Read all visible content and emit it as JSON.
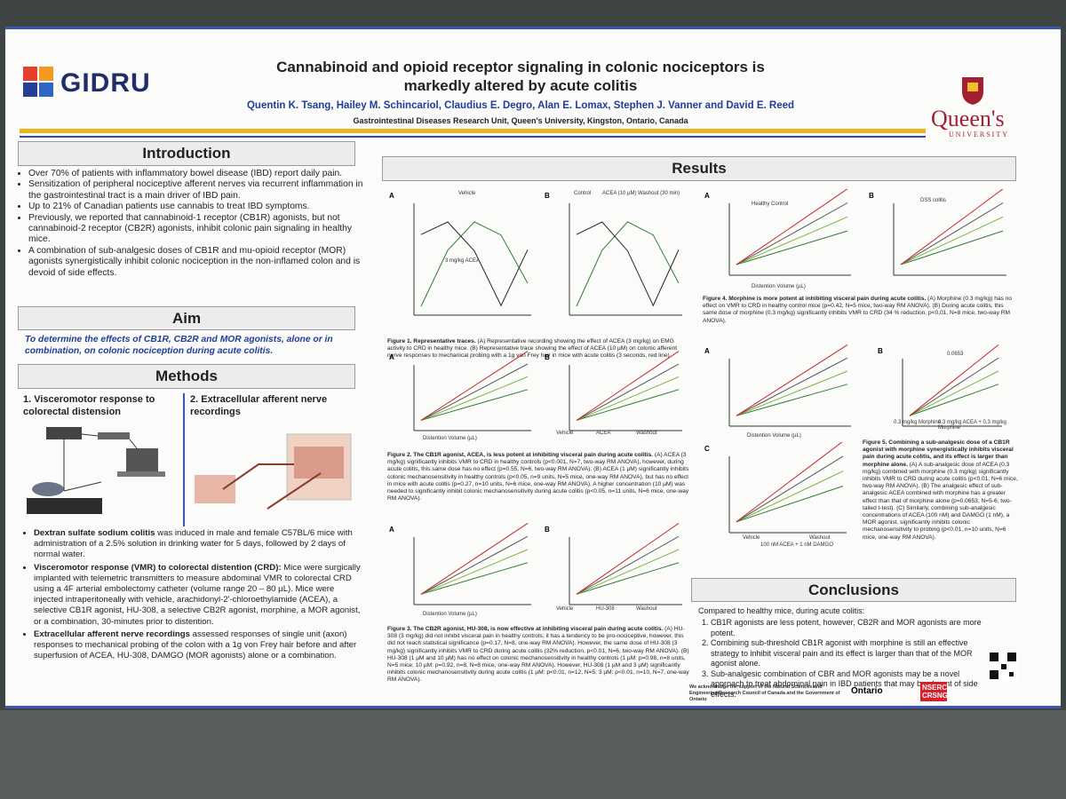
{
  "header": {
    "logo": "GIDRU",
    "title": "Cannabinoid and opioid receptor signaling in colonic nociceptors is markedly altered by acute colitis",
    "authors": "Quentin K. Tsang, Hailey M. Schincariol, Claudius E. Degro, Alan E. Lomax, Stephen J. Vanner and David E. Reed",
    "affiliation": "Gastrointestinal Diseases Research Unit, Queen's University, Kingston, Ontario, Canada",
    "university": "Queen's",
    "university_sub": "UNIVERSITY"
  },
  "introduction": {
    "heading": "Introduction",
    "bullets": [
      "Over 70% of patients with inflammatory bowel disease (IBD) report daily pain.",
      "Sensitization of peripheral nociceptive afferent nerves via recurrent inflammation in the gastrointestinal tract is a main driver of IBD pain.",
      "Up to 21% of Canadian patients use cannabis to treat IBD symptoms.",
      "Previously, we reported that cannabinoid-1 receptor (CB1R) agonists, but not cannabinoid-2 receptor (CB2R) agonists, inhibit colonic pain signaling in healthy mice.",
      "A combination of sub-analgesic doses of CB1R and mu-opioid receptor (MOR) agonists synergistically inhibit colonic nociception in the non-inflamed colon and is devoid of side effects."
    ]
  },
  "aim": {
    "heading": "Aim",
    "text": "To determine the effects of CB1R, CB2R and MOR agonists, alone or in combination, on colonic nociception during acute colitis."
  },
  "methods": {
    "heading": "Methods",
    "sub1": "1. Visceromotor response to colorectal distension",
    "sub2": "2. Extracellular afferent nerve recordings",
    "bullets": [
      {
        "lead": "Dextran sulfate sodium colitis",
        "text": " was induced in male and female C57BL/6 mice with administration of a 2.5% solution in drinking water for 5 days, followed by 2 days of normal water."
      },
      {
        "lead": "Visceromotor response (VMR) to colorectal distention (CRD):",
        "text": " Mice were surgically implanted with telemetric transmitters to measure abdominal VMR to colorectal CRD using a 4F arterial embolectomy catheter (volume range 20 – 80 µL). Mice were injected intraperitoneally with vehicle, arachidonyl-2'-chloroethylamide (ACEA), a selective CB1R agonist, HU-308, a selective CB2R agonist, morphine, a MOR agonist, or a combination, 30-minutes prior to distention."
      },
      {
        "lead": "Extracellular afferent nerve recordings",
        "text": " assessed responses of single unit (axon) responses to mechanical probing of the colon with a 1g von Frey hair before and after superfusion of ACEA, HU-308, DAMGO (MOR agonists) alone or a combination."
      }
    ]
  },
  "results": {
    "heading": "Results",
    "figures": [
      {
        "panels": [
          "A",
          "B"
        ],
        "caption_title": "Figure 1. Representative traces.",
        "caption": " (A) Representative recording showing the effect of ACEA (3 mg/kg) on EMG activity to CRD in healthy mice. (B) Representative trace showing the effect of ACEA (10 µM) on colonic afferent nerve responses to mechanical probing with a 1g von Frey hair in mice with acute colitis (3 seconds, red line).",
        "labels": [
          "Vehicle",
          "3 mg/kg ACEA",
          "Control",
          "ACEA (10 µM)",
          "Washout (30 min)"
        ]
      },
      {
        "panels": [
          "A",
          "B"
        ],
        "caption_title": "Figure 2. The CB1R agonist, ACEA, is less potent at inhibiting visceral pain during acute colitis.",
        "caption": " (A) ACEA (3 mg/kg) significantly inhibits VMR to CRD in healthy controls (p<0.001, N=7, two-way RM ANOVA), however, during acute colitis, this same dose has no effect (p=0.55, N=6, two-way RM ANOVA). (B) ACEA (1 µM) significantly inhibits colonic mechanosensitivity in healthy controls (p<0.05, n=9 units, N=5 mice, one-way RM ANOVA), but has no effect in mice with acute colitis (p=0.27, n=10 units, N=6 mice, one-way RM ANOVA). A higher concentration (10 µM) was needed to significantly inhibit colonic mechanosensitivity during acute colitis (p<0.05, n=11 units, N=6 mice, one-way RM ANOVA).",
        "labels": [
          "Distention Volume (µL)",
          "Vehicle",
          "ACEA",
          "Washout"
        ]
      },
      {
        "panels": [
          "A",
          "B"
        ],
        "caption_title": "Figure 3. The CB2R agonist, HU-308, is now effective at inhibiting visceral pain during acute colitis.",
        "caption": " (A) HU-308 (3 mg/kg) did not inhibit visceral pain in healthy controls; it has a tendency to be pro-nociceptive, however, this did not reach statistical significance (p=0.17, N=8, one-way RM ANOVA). However, the same dose of HU-308 (3 mg/kg) significantly inhibits VMR to CRD during acute colitis (32% reduction, p<0.01, N=6, two-way RM ANOVA). (B) HU-308 (1 µM and 10 µM) has no effect on colonic mechanosensitivity in healthy controls (1 µM: p=0.98, n=8 units, N=5 mice; 10 µM: p=0.92, n=8, N=8 mice, one-way RM ANOVA). However, HU-308 (1 µM and 3 µM) significantly inhibits colonic mechanosensitivity during acute colitis (1 µM: p<0.01, n=12, N=5; 3 µM: p<0.01, n=10, N=7, one-way RM ANOVA).",
        "labels": [
          "Distention Volume (µL)",
          "Vehicle",
          "HU-308",
          "Washout"
        ]
      },
      {
        "panels": [
          "A",
          "B"
        ],
        "caption_title": "Figure 4. Morphine is more potent at inhibiting visceral pain during acute colitis.",
        "caption": " (A) Morphine (0.3 mg/kg) has no effect on VMR to CRD in healthy control mice (p=0.42, N=5 mice, two-way RM ANOVA). (B) During acute colitis, this same dose of morphine (0.3 mg/kg) significantly inhibits VMR to CRD (34 % reduction, p<0.01, N=8 mice, two-way RM ANOVA).",
        "labels": [
          "Healthy Control",
          "DSS colitis",
          "Distention Volume (µL)"
        ]
      },
      {
        "panels": [
          "A",
          "B",
          "C"
        ],
        "caption_title": "Figure 5. Combining a sub-analgesic dose of a CB1R agonist with morphine synergistically inhibits visceral pain during acute colitis, and its effect is larger than morphine alone.",
        "caption": " (A) A sub-analgesic dose of ACEA (0.3 mg/kg) combined with morphine (0.3 mg/kg) significantly inhibits VMR to CRD during acute colitis (p<0.01, N=6 mice, two-way RM ANOVA). (B) The analgesic effect of sub-analgesic ACEA combined with morphine has a greater effect than that of morphine alone (p=0.0653, N=5-6, two-tailed t-test). (C) Similarly, combining sub-analgesic concentrations of ACEA (100 nM) and DAMGO (1 nM), a MOR agonist, significantly inhibits colonic mechanosensitivity to probing (p<0.01, n=10 units, N=6 mice, one-way RM ANOVA).",
        "labels": [
          "Distention Volume (µL)",
          "0.0653",
          "0.3 mg/kg Morphine",
          "0.3 mg/kg ACEA + 0.3 mg/kg Morphine",
          "Vehicle",
          "100 nM ACEA + 1 nM DAMGO",
          "Washout"
        ]
      }
    ]
  },
  "conclusions": {
    "heading": "Conclusions",
    "intro": "Compared to healthy mice, during acute colitis:",
    "items": [
      "CB1R agonists are less potent, however, CB2R and MOR agonists are more potent.",
      "Combining sub-threshold CB1R agonist with morphine is still an effective strategy to inhibit visceral pain and its effect is larger than that of the MOR agonist alone.",
      "Sub-analgesic combination of CBR and MOR agonists may be a novel approach to treat abdominal pain in IBD patients that may be absent of side effects."
    ]
  },
  "acknowledgement": "We acknowledge the support of the Natural Sciences and Engineering Research Council of Canada and the Government of Ontario",
  "sponsors": [
    "Ontario",
    "NSERC CRSNG"
  ]
}
